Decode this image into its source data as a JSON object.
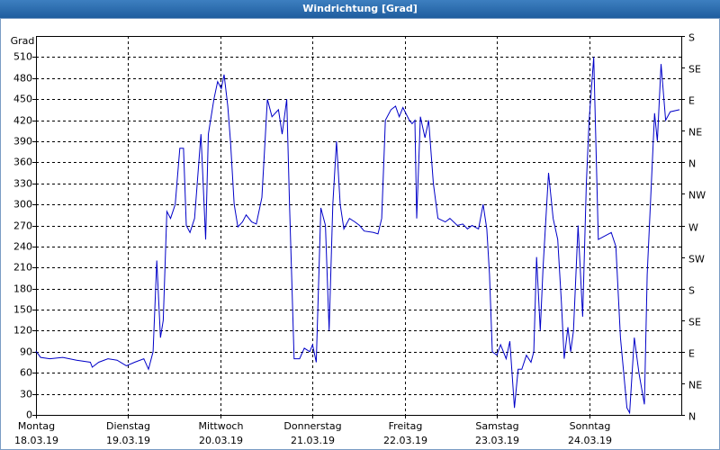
{
  "chart_data": {
    "type": "line",
    "title": "Windrichtung [Grad]",
    "y_label": "Grad",
    "color": "#0000c8",
    "grid": true,
    "xlim": [
      0,
      7
    ],
    "ylim": [
      0,
      540
    ],
    "yticks": [
      0,
      30,
      60,
      90,
      120,
      150,
      180,
      210,
      240,
      270,
      300,
      330,
      360,
      390,
      420,
      450,
      480,
      510
    ],
    "y2lim": [
      0,
      540
    ],
    "y2ticks": [
      {
        "value": 0,
        "label": "N"
      },
      {
        "value": 45,
        "label": "NE"
      },
      {
        "value": 90,
        "label": "E"
      },
      {
        "value": 135,
        "label": "SE"
      },
      {
        "value": 180,
        "label": "S"
      },
      {
        "value": 225,
        "label": "SW"
      },
      {
        "value": 270,
        "label": "W"
      },
      {
        "value": 315,
        "label": "NW"
      },
      {
        "value": 360,
        "label": "N"
      },
      {
        "value": 405,
        "label": "NE"
      },
      {
        "value": 450,
        "label": "E"
      },
      {
        "value": 495,
        "label": "SE"
      },
      {
        "value": 540,
        "label": "S"
      }
    ],
    "xticks": [
      {
        "value": 0,
        "label": "Montag"
      },
      {
        "value": 1,
        "label": "Dienstag"
      },
      {
        "value": 2,
        "label": "Mittwoch"
      },
      {
        "value": 3,
        "label": "Donnerstag"
      },
      {
        "value": 4,
        "label": "Freitag"
      },
      {
        "value": 5,
        "label": "Samstag"
      },
      {
        "value": 6,
        "label": "Sonntag"
      }
    ],
    "xtick_dates": [
      "18.03.19",
      "19.03.19",
      "20.03.19",
      "21.03.19",
      "22.03.19",
      "23.03.19",
      "24.03.19"
    ],
    "x": [
      0,
      0.05,
      0.15,
      0.29,
      0.44,
      0.59,
      0.61,
      0.68,
      0.78,
      0.88,
      0.98,
      1.07,
      1.17,
      1.22,
      1.27,
      1.31,
      1.35,
      1.38,
      1.42,
      1.46,
      1.51,
      1.56,
      1.6,
      1.63,
      1.67,
      1.72,
      1.79,
      1.84,
      1.87,
      1.93,
      1.97,
      2.01,
      2.04,
      2.08,
      2.11,
      2.15,
      2.19,
      2.24,
      2.28,
      2.34,
      2.39,
      2.45,
      2.51,
      2.56,
      2.63,
      2.67,
      2.72,
      2.75,
      2.8,
      2.86,
      2.91,
      2.97,
      3.0,
      3.04,
      3.09,
      3.14,
      3.18,
      3.22,
      3.26,
      3.3,
      3.34,
      3.4,
      3.46,
      3.51,
      3.56,
      3.66,
      3.71,
      3.75,
      3.79,
      3.85,
      3.9,
      3.94,
      3.98,
      4.05,
      4.08,
      4.11,
      4.13,
      4.17,
      4.22,
      4.26,
      4.31,
      4.36,
      4.44,
      4.49,
      4.57,
      4.63,
      4.68,
      4.73,
      4.8,
      4.85,
      4.89,
      4.92,
      4.95,
      5.0,
      5.04,
      5.1,
      5.14,
      5.19,
      5.23,
      5.27,
      5.32,
      5.37,
      5.4,
      5.43,
      5.47,
      5.5,
      5.56,
      5.61,
      5.66,
      5.7,
      5.73,
      5.77,
      5.8,
      5.83,
      5.88,
      5.93,
      5.97,
      6.0,
      6.05,
      6.1,
      6.17,
      6.24,
      6.29,
      6.34,
      6.41,
      6.44,
      6.49,
      6.54,
      6.6,
      6.63,
      6.71,
      6.74,
      6.78,
      6.83,
      6.88,
      6.98
    ],
    "values": [
      91,
      82,
      80,
      82,
      78,
      75,
      68,
      75,
      80,
      78,
      70,
      75,
      80,
      65,
      90,
      220,
      110,
      135,
      290,
      280,
      300,
      380,
      380,
      270,
      260,
      280,
      400,
      250,
      400,
      450,
      475,
      465,
      485,
      440,
      390,
      300,
      268,
      275,
      285,
      275,
      272,
      310,
      450,
      425,
      435,
      400,
      450,
      300,
      80,
      80,
      95,
      90,
      100,
      75,
      295,
      270,
      120,
      300,
      390,
      300,
      265,
      280,
      275,
      270,
      262,
      260,
      258,
      280,
      420,
      435,
      440,
      425,
      438,
      420,
      415,
      420,
      280,
      425,
      395,
      420,
      330,
      280,
      275,
      280,
      270,
      272,
      265,
      270,
      265,
      300,
      265,
      200,
      90,
      85,
      100,
      80,
      105,
      10,
      65,
      65,
      85,
      75,
      90,
      225,
      120,
      210,
      345,
      280,
      250,
      160,
      80,
      125,
      90,
      120,
      270,
      140,
      330,
      420,
      510,
      250,
      255,
      260,
      240,
      110,
      10,
      3,
      110,
      60,
      15,
      200,
      430,
      390,
      500,
      420,
      432,
      435
    ]
  }
}
